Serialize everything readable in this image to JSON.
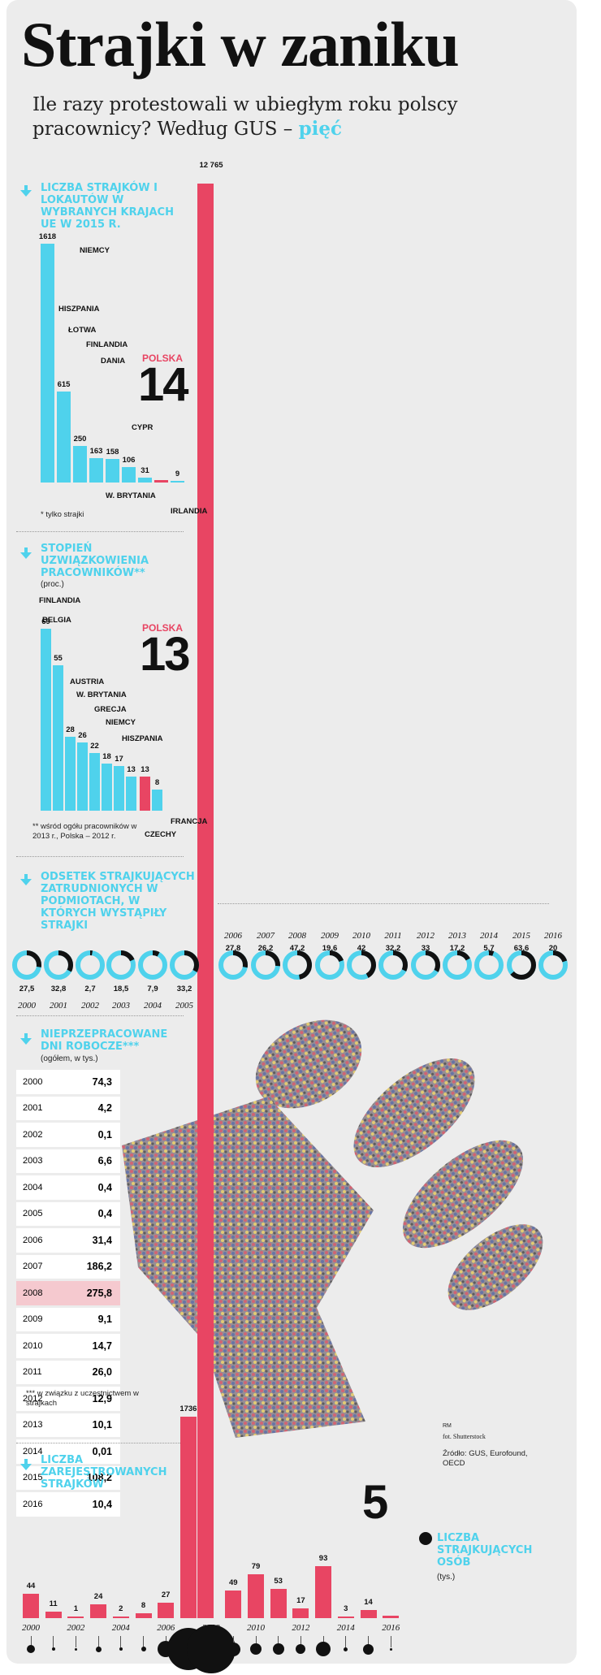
{
  "header": {
    "title": "Strajki w zaniku",
    "subtitle": "Ile razy protestowali w ubiegłym roku polscy pracownicy? Według GUS –",
    "subtitle_accent": "pięć"
  },
  "colors": {
    "accent": "#4fd2ec",
    "pink": "#e84563",
    "bg": "#ececec"
  },
  "icons": {
    "section_arrow": "arrow-down-icon"
  },
  "big_bar": {
    "value_label": "12 765",
    "value": 12765
  },
  "chart_data": [
    {
      "type": "bar",
      "title": "LICZBA STRAJKÓW I LOKAUTÓW W WYBRANYCH KRAJACH UE W 2015 R.",
      "categories": [
        "NIEMCY",
        "HISZPANIA",
        "ŁOTWA",
        "FINLANDIA",
        "DANIA",
        "W. BRYTANIA",
        "CYPR",
        "POLSKA",
        "IRLANDIA"
      ],
      "values": [
        1618,
        615,
        250,
        163,
        158,
        106,
        31,
        14,
        9
      ],
      "value_labels": [
        "1618",
        "615",
        "250",
        "163",
        "158",
        "106",
        "31",
        "14",
        "9"
      ],
      "highlight": "POLSKA",
      "footnote": "* tylko strajki"
    },
    {
      "type": "bar",
      "title": "STOPIEŃ UZWIĄZKOWIENIA PRACOWNIKÓW**",
      "unit": "(proc.)",
      "categories": [
        "FINLANDIA",
        "BELGIA",
        "AUSTRIA",
        "W. BRYTANIA",
        "GRECJA",
        "NIEMCY",
        "HISZPANIA",
        "CZECHY",
        "POLSKA",
        "FRANCJA"
      ],
      "values": [
        69,
        55,
        28,
        26,
        22,
        18,
        17,
        13,
        13,
        8
      ],
      "value_labels": [
        "69",
        "55",
        "28",
        "26",
        "22",
        "18",
        "17",
        "13",
        "13",
        "8"
      ],
      "highlight": "POLSKA",
      "footnote": "** wśród ogółu pracowników w 2013 r., Polska – 2012 r."
    },
    {
      "type": "pie",
      "title": "ODSETEK STRAJKUJĄCYCH ZATRUDNIONYCH W PODMIOTACH, W KTÓRYCH WYSTĄPIŁY STRAJKI",
      "x": [
        "2000",
        "2001",
        "2002",
        "2003",
        "2004",
        "2005",
        "2006",
        "2007",
        "2008",
        "2009",
        "2010",
        "2011",
        "2012",
        "2013",
        "2014",
        "2015",
        "2016"
      ],
      "values": [
        27.5,
        32.8,
        2.7,
        18.5,
        7.9,
        33.2,
        27.8,
        26.2,
        47.2,
        19.6,
        42,
        32.2,
        33,
        17.2,
        5.7,
        63.6,
        20
      ],
      "value_labels": [
        "27,5",
        "32,8",
        "2,7",
        "18,5",
        "7,9",
        "33,2",
        "27,8",
        "26,2",
        "47,2",
        "19,6",
        "42",
        "32,2",
        "33",
        "17,2",
        "5,7",
        "63,6",
        "20"
      ]
    },
    {
      "type": "table",
      "title": "NIEPRZEPRACOWANE DNI ROBOCZE***",
      "unit": "(ogółem, w tys.)",
      "x": [
        "2000",
        "2001",
        "2002",
        "2003",
        "2004",
        "2005",
        "2006",
        "2007",
        "2008",
        "2009",
        "2010",
        "2011",
        "2012",
        "2013",
        "2014",
        "2015",
        "2016"
      ],
      "values": [
        74.3,
        4.2,
        0.1,
        6.6,
        0.4,
        0.4,
        31.4,
        186.2,
        275.8,
        9.1,
        14.7,
        26.0,
        12.9,
        10.1,
        0.01,
        108.2,
        10.4
      ],
      "value_labels": [
        "74,3",
        "4,2",
        "0,1",
        "6,6",
        "0,4",
        "0,4",
        "31,4",
        "186,2",
        "275,8",
        "9,1",
        "14,7",
        "26,0",
        "12,9",
        "10,1",
        "0,01",
        "108,2",
        "10,4"
      ],
      "highlight": "2008",
      "footnote": "*** w związku z uczestnictwem w strajkach"
    },
    {
      "type": "bar",
      "title": "LICZBA ZAREJESTROWANYCH STRAJKÓW",
      "x": [
        "2000",
        "2001",
        "2002",
        "2003",
        "2004",
        "2005",
        "2006",
        "2007",
        "2008",
        "2009",
        "2010",
        "2011",
        "2012",
        "2013",
        "2014",
        "2015",
        "2016"
      ],
      "x_labels": [
        "2000",
        "",
        "2002",
        "",
        "2004",
        "",
        "2006",
        "",
        "2008",
        "",
        "2010",
        "",
        "2012",
        "",
        "2014",
        "",
        "2016"
      ],
      "values": [
        44,
        11,
        1,
        24,
        2,
        8,
        27,
        1736,
        12765,
        49,
        79,
        53,
        17,
        93,
        3,
        14,
        5
      ],
      "value_labels": [
        "44",
        "11",
        "1",
        "24",
        "2",
        "8",
        "27",
        "1736",
        "",
        "49",
        "79",
        "53",
        "17",
        "93",
        "3",
        "14",
        ""
      ],
      "big_label": "5"
    },
    {
      "type": "scatter",
      "title": "LICZBA STRAJKUJĄCYCH OSÓB",
      "unit": "(tys.)",
      "x": [
        "2000",
        "2001",
        "2002",
        "2003",
        "2004",
        "2005",
        "2006",
        "2007",
        "2008",
        "2009",
        "2010",
        "2011",
        "2012",
        "2013",
        "2014",
        "2015",
        "2016"
      ]
    }
  ],
  "credits": {
    "author": "RM",
    "photo": "fot. Shutterstock",
    "source": "Źródło: GUS, Eurofound, OECD"
  }
}
